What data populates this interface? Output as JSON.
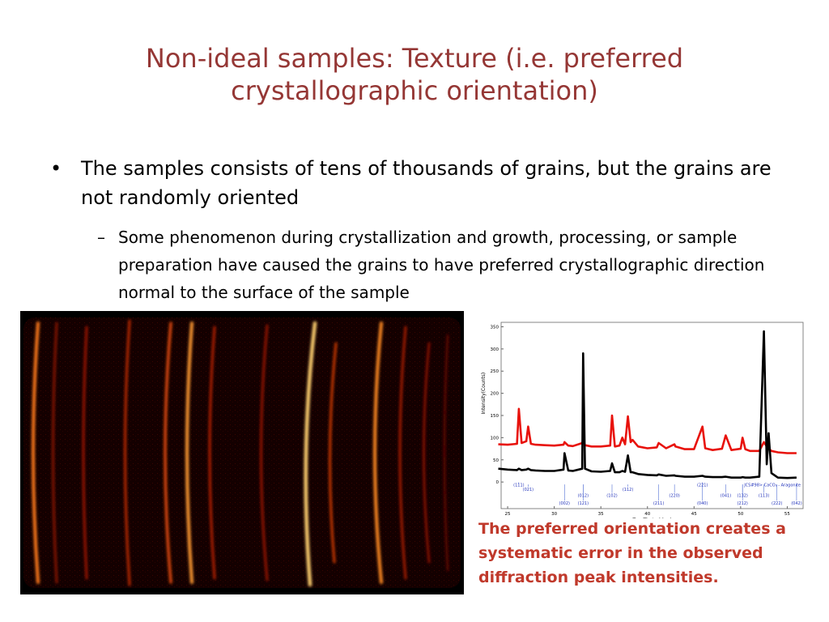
{
  "title": "Non-ideal samples: Texture (i.e. preferred crystallographic orientation)",
  "bullets": [
    {
      "text": "The samples consists of tens of thousands of grains, but the grains are not randomly oriented",
      "sub": [
        "Some phenomenon during crystallization and growth, processing, or sample preparation have caused the grains to have preferred crystallographic direction normal to the surface of the sample"
      ]
    }
  ],
  "caption": "The preferred orientation creates a systematic error in the observed diffraction peak intensities.",
  "chart_data": {
    "type": "line",
    "xlabel": "Two-Theta (deg)",
    "ylabel": "Intensity(Counts)",
    "xlim": [
      24.3,
      56.7
    ],
    "ylim": [
      -60,
      360
    ],
    "xticks": [
      25,
      30,
      35,
      40,
      45,
      50,
      55
    ],
    "yticks": [
      0,
      50,
      100,
      150,
      200,
      250,
      300,
      350
    ],
    "x": [
      24,
      25,
      26,
      26.2,
      26.5,
      27,
      27.2,
      27.5,
      28,
      29,
      30,
      31,
      31.1,
      31.5,
      32,
      33,
      33.1,
      33.3,
      34,
      35,
      36,
      36.2,
      36.5,
      37,
      37.3,
      37.6,
      37.9,
      38.2,
      38.4,
      39,
      40,
      41,
      41.2,
      42,
      42.9,
      43,
      44,
      45,
      45.9,
      46.2,
      47,
      48,
      48.4,
      49,
      50,
      50.2,
      50.5,
      51,
      52,
      52.5,
      52.8,
      53,
      53.3,
      54,
      55,
      56
    ],
    "series": [
      {
        "color": "#e8120c",
        "values": [
          85,
          84,
          86,
          165,
          88,
          92,
          125,
          86,
          84,
          83,
          82,
          84,
          90,
          82,
          81,
          88,
          95,
          83,
          80,
          80,
          82,
          150,
          80,
          82,
          100,
          85,
          148,
          90,
          95,
          80,
          76,
          78,
          88,
          76,
          85,
          80,
          74,
          74,
          125,
          76,
          72,
          75,
          105,
          72,
          75,
          100,
          74,
          70,
          70,
          90,
          80,
          75,
          70,
          67,
          65,
          65
        ]
      },
      {
        "color": "#000000",
        "values": [
          30,
          28,
          27,
          30,
          27,
          28,
          30,
          27,
          26,
          25,
          25,
          28,
          65,
          26,
          25,
          30,
          290,
          30,
          24,
          23,
          25,
          42,
          22,
          22,
          25,
          23,
          60,
          22,
          22,
          18,
          16,
          15,
          17,
          14,
          15,
          14,
          12,
          12,
          14,
          12,
          11,
          11,
          12,
          10,
          10,
          11,
          10,
          10,
          12,
          340,
          40,
          110,
          20,
          10,
          9,
          10
        ]
      }
    ],
    "reference": "JCS#98> CaCO₃ - Aragonite",
    "annotations": [
      {
        "x": 26.2,
        "label": "(111)"
      },
      {
        "x": 27.2,
        "label": "(021)"
      },
      {
        "x": 31.1,
        "label": "(002)"
      },
      {
        "x": 33.1,
        "label": "(012)"
      },
      {
        "x": 33.1,
        "label": "(121)"
      },
      {
        "x": 36.2,
        "label": "(102)"
      },
      {
        "x": 37.9,
        "label": "(112)"
      },
      {
        "x": 41.2,
        "label": "(211)"
      },
      {
        "x": 42.9,
        "label": "(220)"
      },
      {
        "x": 45.9,
        "label": "(221)"
      },
      {
        "x": 45.9,
        "label": "(040)"
      },
      {
        "x": 48.4,
        "label": "(041)"
      },
      {
        "x": 50.2,
        "label": "(132)"
      },
      {
        "x": 50.2,
        "label": "(212)"
      },
      {
        "x": 52.5,
        "label": "(113)"
      },
      {
        "x": 53.9,
        "label": "(222)"
      },
      {
        "x": 56.0,
        "label": "(042)"
      }
    ]
  }
}
